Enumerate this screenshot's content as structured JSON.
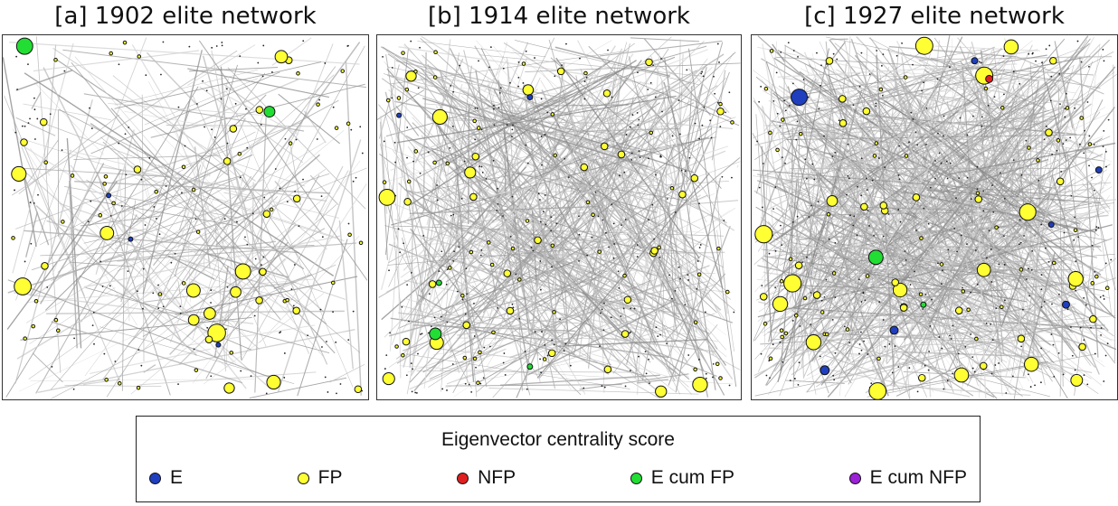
{
  "panels": [
    {
      "id": "a",
      "title": "[a] 1902 elite network"
    },
    {
      "id": "b",
      "title": "[b] 1914 elite network"
    },
    {
      "id": "c",
      "title": "[c] 1927 elite network"
    }
  ],
  "legend": {
    "title": "Eigenvector centrality score",
    "items": [
      {
        "label": "E",
        "color": "#1f3fbf"
      },
      {
        "label": "FP",
        "color": "#ffff33"
      },
      {
        "label": "NFP",
        "color": "#e02020"
      },
      {
        "label": "E cum FP",
        "color": "#22dd33"
      },
      {
        "label": "E cum NFP",
        "color": "#9b22d6"
      }
    ]
  }
}
